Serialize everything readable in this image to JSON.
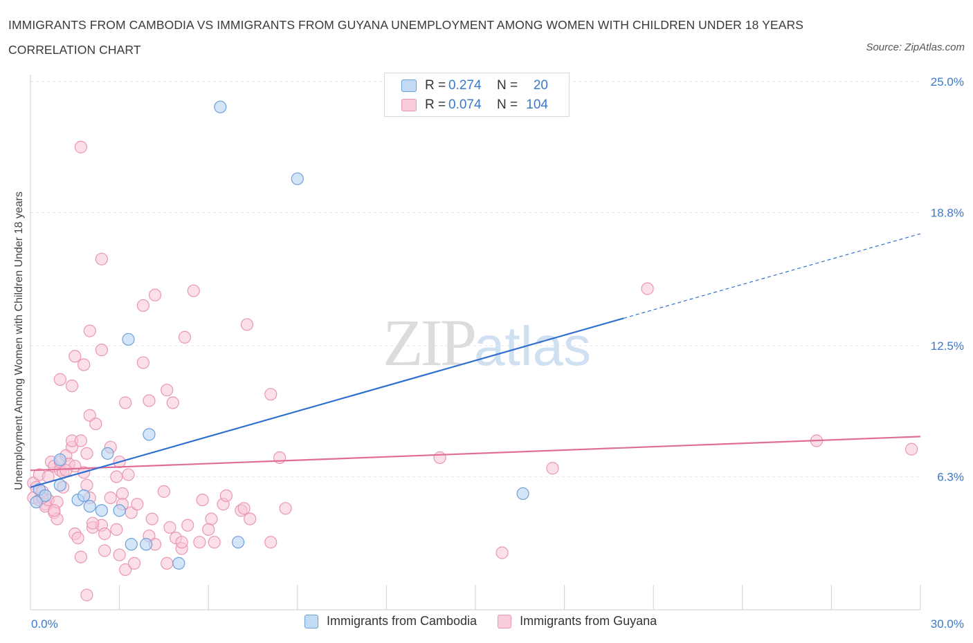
{
  "title": "IMMIGRANTS FROM CAMBODIA VS IMMIGRANTS FROM GUYANA UNEMPLOYMENT AMONG WOMEN WITH CHILDREN UNDER 18 YEARS CORRELATION CHART",
  "source": "Source: ZipAtlas.com",
  "watermark": {
    "zip": "ZIP",
    "atlas": "atlas"
  },
  "legend": {
    "rows": [
      {
        "r_label": "R =",
        "r_value": "0.274",
        "n_label": "N =",
        "n_value": "20"
      },
      {
        "r_label": "R =",
        "r_value": "0.074",
        "n_label": "N =",
        "n_value": "104"
      }
    ]
  },
  "bottom_legend": [
    "Immigrants from Cambodia",
    "Immigrants from Guyana"
  ],
  "colors": {
    "cambodia_fill": "#b9d3f3",
    "cambodia_stroke": "#6c9fdc",
    "cambodia_line": "#2f6fcf",
    "guyana_fill": "#f8c6d6",
    "guyana_stroke": "#e996b2",
    "guyana_line": "#e06c97",
    "axis_text": "#3b78c8",
    "grid": "#e3e3e3"
  },
  "chart_data": {
    "type": "scatter",
    "ylabel": "Unemployment Among Women with Children Under 18 years",
    "xlim": [
      0,
      30
    ],
    "ylim": [
      0,
      25
    ],
    "x_ticks_labels": [
      "0.0%",
      "30.0%"
    ],
    "y_ticks": [
      6.3,
      12.5,
      18.8,
      25.0
    ],
    "y_tick_labels": [
      "6.3%",
      "12.5%",
      "18.8%",
      "25.0%"
    ],
    "grid": true,
    "series": [
      {
        "name": "Immigrants from Cambodia",
        "points": [
          [
            0.3,
            5.7
          ],
          [
            0.5,
            5.4
          ],
          [
            1.0,
            5.9
          ],
          [
            1.0,
            7.1
          ],
          [
            1.6,
            5.2
          ],
          [
            1.8,
            5.4
          ],
          [
            2.0,
            4.9
          ],
          [
            2.4,
            4.7
          ],
          [
            2.6,
            7.4
          ],
          [
            3.0,
            4.7
          ],
          [
            3.3,
            12.8
          ],
          [
            3.4,
            3.1
          ],
          [
            3.9,
            3.1
          ],
          [
            4.0,
            8.3
          ],
          [
            5.0,
            2.2
          ],
          [
            6.4,
            23.8
          ],
          [
            7.0,
            3.2
          ],
          [
            9.0,
            20.4
          ],
          [
            16.6,
            5.5
          ],
          [
            0.2,
            5.1
          ]
        ],
        "trend": {
          "x0": 0,
          "y0": 5.8,
          "x1": 20.0,
          "y1": 13.8,
          "dashed_to_x": 30,
          "dashed_to_y": 17.8
        }
      },
      {
        "name": "Immigrants from Guyana",
        "points": [
          [
            0.1,
            6.0
          ],
          [
            0.1,
            5.3
          ],
          [
            0.2,
            5.8
          ],
          [
            0.3,
            5.2
          ],
          [
            0.3,
            6.4
          ],
          [
            0.4,
            5.6
          ],
          [
            0.5,
            5.0
          ],
          [
            0.5,
            4.9
          ],
          [
            0.6,
            6.3
          ],
          [
            0.6,
            5.2
          ],
          [
            0.7,
            7.0
          ],
          [
            0.8,
            6.8
          ],
          [
            0.8,
            4.6
          ],
          [
            0.9,
            5.1
          ],
          [
            0.9,
            4.3
          ],
          [
            1.0,
            6.6
          ],
          [
            1.0,
            7.0
          ],
          [
            1.1,
            6.5
          ],
          [
            1.1,
            5.8
          ],
          [
            1.0,
            10.9
          ],
          [
            1.2,
            7.3
          ],
          [
            1.3,
            6.9
          ],
          [
            1.4,
            7.7
          ],
          [
            1.4,
            8.0
          ],
          [
            1.5,
            6.8
          ],
          [
            1.5,
            3.6
          ],
          [
            1.6,
            3.4
          ],
          [
            1.4,
            10.6
          ],
          [
            1.5,
            12.0
          ],
          [
            1.7,
            8.0
          ],
          [
            1.7,
            2.5
          ],
          [
            1.8,
            11.6
          ],
          [
            1.8,
            6.5
          ],
          [
            1.9,
            7.4
          ],
          [
            1.9,
            5.9
          ],
          [
            2.0,
            9.2
          ],
          [
            2.0,
            5.3
          ],
          [
            2.1,
            3.9
          ],
          [
            2.0,
            13.2
          ],
          [
            2.2,
            8.8
          ],
          [
            1.7,
            21.9
          ],
          [
            2.4,
            4.0
          ],
          [
            2.4,
            12.3
          ],
          [
            2.5,
            3.6
          ],
          [
            2.5,
            2.8
          ],
          [
            2.4,
            16.6
          ],
          [
            2.7,
            7.7
          ],
          [
            2.7,
            5.3
          ],
          [
            2.9,
            6.3
          ],
          [
            3.0,
            7.0
          ],
          [
            3.0,
            2.6
          ],
          [
            3.1,
            5.5
          ],
          [
            3.1,
            5.0
          ],
          [
            3.2,
            1.9
          ],
          [
            3.2,
            9.8
          ],
          [
            3.3,
            6.4
          ],
          [
            3.4,
            4.6
          ],
          [
            3.5,
            2.2
          ],
          [
            3.6,
            5.0
          ],
          [
            3.8,
            11.7
          ],
          [
            3.8,
            14.4
          ],
          [
            4.0,
            3.5
          ],
          [
            4.0,
            9.9
          ],
          [
            4.1,
            4.3
          ],
          [
            4.2,
            3.1
          ],
          [
            4.2,
            14.9
          ],
          [
            4.5,
            5.6
          ],
          [
            4.6,
            10.4
          ],
          [
            4.6,
            2.2
          ],
          [
            4.7,
            3.9
          ],
          [
            4.8,
            9.8
          ],
          [
            4.9,
            3.4
          ],
          [
            5.1,
            2.9
          ],
          [
            5.1,
            3.2
          ],
          [
            5.2,
            12.9
          ],
          [
            5.3,
            4.0
          ],
          [
            5.5,
            15.1
          ],
          [
            5.7,
            3.2
          ],
          [
            5.8,
            5.2
          ],
          [
            6.1,
            4.3
          ],
          [
            6.2,
            3.2
          ],
          [
            6.5,
            5.0
          ],
          [
            6.6,
            5.4
          ],
          [
            7.1,
            4.7
          ],
          [
            7.2,
            4.8
          ],
          [
            7.3,
            13.5
          ],
          [
            7.4,
            4.3
          ],
          [
            8.1,
            10.2
          ],
          [
            8.1,
            3.2
          ],
          [
            8.4,
            7.2
          ],
          [
            8.6,
            4.8
          ],
          [
            13.8,
            7.2
          ],
          [
            15.9,
            2.7
          ],
          [
            17.6,
            6.7
          ],
          [
            20.8,
            15.2
          ],
          [
            26.5,
            8.0
          ],
          [
            29.7,
            7.6
          ],
          [
            1.9,
            0.7
          ],
          [
            2.1,
            4.1
          ],
          [
            2.9,
            3.8
          ],
          [
            0.8,
            4.7
          ],
          [
            1.2,
            6.6
          ],
          [
            0.4,
            5.3
          ],
          [
            6.0,
            3.8
          ]
        ],
        "trend": {
          "x0": 0,
          "y0": 6.6,
          "x1": 30,
          "y1": 8.2
        }
      }
    ]
  }
}
